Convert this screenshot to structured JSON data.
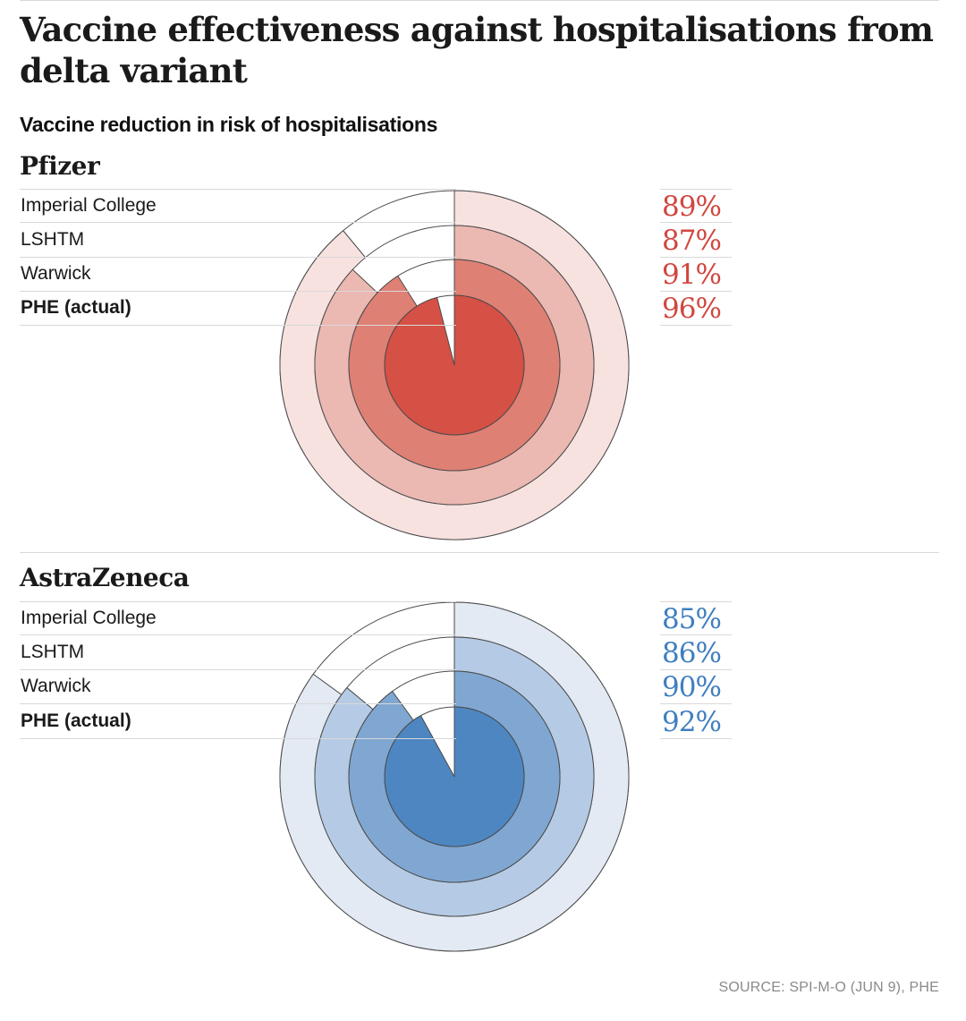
{
  "title": "Vaccine effectiveness against hospitalisations from delta variant",
  "subtitle": "Vaccine reduction in risk of hospitalisations",
  "source": "SOURCE: SPI-M-O (JUN 9), PHE",
  "chart_data": [
    {
      "type": "radial-pie",
      "title": "Pfizer",
      "unit": "%",
      "domain": [
        0,
        100
      ],
      "series": [
        {
          "name": "Imperial College",
          "value": 89,
          "label": "89%",
          "fill": "#f7e2e0"
        },
        {
          "name": "LSHTM",
          "value": 87,
          "label": "87%",
          "fill": "#ebb8b2"
        },
        {
          "name": "Warwick",
          "value": 91,
          "label": "91%",
          "fill": "#df8075"
        },
        {
          "name": "PHE (actual)",
          "value": 96,
          "label": "96%",
          "fill": "#d55045"
        }
      ],
      "value_color": "#d1463f"
    },
    {
      "type": "radial-pie",
      "title": "AstraZeneca",
      "unit": "%",
      "domain": [
        0,
        100
      ],
      "series": [
        {
          "name": "Imperial College",
          "value": 85,
          "label": "85%",
          "fill": "#e3eaf3"
        },
        {
          "name": "LSHTM",
          "value": 86,
          "label": "86%",
          "fill": "#b5cbe5"
        },
        {
          "name": "Warwick",
          "value": 90,
          "label": "90%",
          "fill": "#80a7d1"
        },
        {
          "name": "PHE (actual)",
          "value": 92,
          "label": "92%",
          "fill": "#4e86c2"
        }
      ],
      "value_color": "#3f7fbf"
    }
  ]
}
